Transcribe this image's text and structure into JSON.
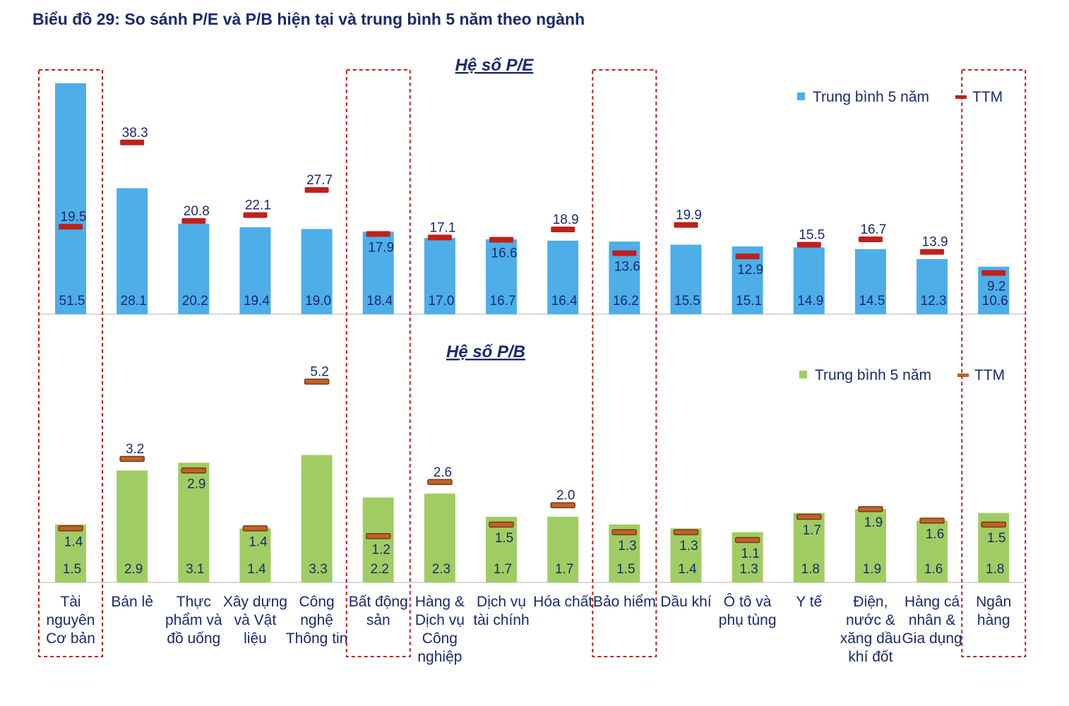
{
  "title": "Biểu đồ 29: So sánh P/E và P/B hiện tại và trung bình 5 năm theo ngành",
  "chart_data": [
    {
      "type": "bar",
      "title": "Hệ số P/E",
      "legend_position": "top-right",
      "colors": {
        "avg": "#4daee8",
        "ttm": "#c0201c"
      },
      "categories": [
        "Tài nguyên Cơ bản",
        "Bán lẻ",
        "Thực phẩm và đồ uống",
        "Xây dựng và Vật liệu",
        "Công nghệ Thông tin",
        "Bất động sản",
        "Hàng & Dịch vụ Công nghiệp",
        "Dịch vụ tài chính",
        "Hóa chất",
        "Bảo hiểm",
        "Dầu khí",
        "Ô tô và phụ tùng",
        "Y tế",
        "Điện, nước & xăng dầu khí đốt",
        "Hàng cá nhân & Gia dụng",
        "Ngân hàng"
      ],
      "series": [
        {
          "name": "Trung bình 5 năm",
          "values": [
            51.5,
            28.1,
            20.2,
            19.4,
            19.0,
            18.4,
            17.0,
            16.7,
            16.4,
            16.2,
            15.5,
            15.1,
            14.9,
            14.5,
            12.3,
            10.6
          ]
        },
        {
          "name": "TTM",
          "values": [
            19.5,
            38.3,
            20.8,
            22.1,
            27.7,
            17.9,
            17.1,
            16.6,
            18.9,
            13.6,
            19.9,
            12.9,
            15.5,
            16.7,
            13.9,
            9.2
          ]
        }
      ]
    },
    {
      "type": "bar",
      "title": "Hệ số P/B",
      "legend_position": "top-right",
      "colors": {
        "avg": "#a0cd63",
        "ttm": "#c0622a"
      },
      "series": [
        {
          "name": "Trung bình 5 năm",
          "values": [
            1.5,
            2.9,
            3.1,
            1.4,
            3.3,
            2.2,
            2.3,
            1.7,
            1.7,
            1.5,
            1.4,
            1.3,
            1.8,
            1.9,
            1.6,
            1.8
          ]
        },
        {
          "name": "TTM",
          "values": [
            1.4,
            3.2,
            2.9,
            1.4,
            5.2,
            1.2,
            2.6,
            1.5,
            2.0,
            1.3,
            1.3,
            1.1,
            1.7,
            1.9,
            1.6,
            1.5
          ]
        }
      ]
    }
  ],
  "highlighted_categories": [
    "Tài nguyên Cơ bản",
    "Bất động sản",
    "Bảo hiểm",
    "Ngân hàng"
  ]
}
